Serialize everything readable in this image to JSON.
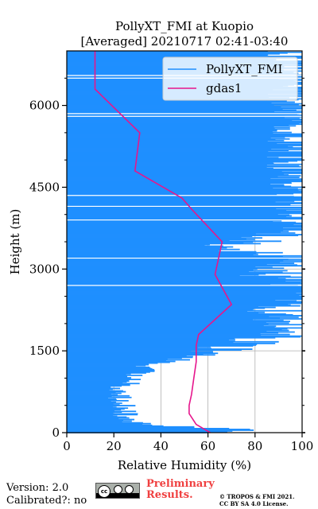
{
  "chart_data": {
    "type": "line",
    "title_line1": "PollyXT_FMI at Kuopio",
    "title_line2": "[Averaged] 20210717 02:41-03:40",
    "xlabel": "Relative Humidity (%)",
    "ylabel": "Height (m)",
    "xlim": [
      0,
      100
    ],
    "ylim": [
      0,
      7000
    ],
    "xticks": [
      0,
      20,
      40,
      60,
      80,
      100
    ],
    "yticks": [
      0,
      1500,
      3000,
      4500,
      6000
    ],
    "grid": true,
    "legend_position": "top-right",
    "series": [
      {
        "name": "PollyXT_FMI",
        "color": "#1f8fff",
        "points": [
          [
            60,
            0
          ],
          [
            85,
            50
          ],
          [
            40,
            120
          ],
          [
            33,
            160
          ],
          [
            28,
            200
          ],
          [
            26,
            260
          ],
          [
            25,
            320
          ],
          [
            24,
            380
          ],
          [
            24,
            450
          ],
          [
            23,
            520
          ],
          [
            23,
            600
          ],
          [
            22,
            680
          ],
          [
            22,
            760
          ],
          [
            24,
            840
          ],
          [
            26,
            920
          ],
          [
            28,
            1000
          ],
          [
            30,
            1080
          ],
          [
            33,
            1160
          ],
          [
            36,
            1240
          ],
          [
            45,
            1320
          ],
          [
            55,
            1400
          ],
          [
            62,
            1480
          ],
          [
            70,
            1560
          ],
          [
            78,
            1640
          ],
          [
            85,
            1720
          ],
          [
            95,
            1800
          ],
          [
            100,
            1900
          ],
          [
            98,
            2000
          ],
          [
            92,
            2100
          ],
          [
            88,
            2200
          ],
          [
            95,
            2300
          ],
          [
            100,
            2400
          ],
          [
            100,
            2500
          ],
          [
            100,
            2600
          ],
          [
            100,
            2700
          ],
          [
            95,
            2800
          ],
          [
            85,
            2900
          ],
          [
            90,
            3000
          ],
          [
            100,
            3100
          ],
          [
            100,
            3200
          ],
          [
            80,
            3300
          ],
          [
            70,
            3400
          ],
          [
            78,
            3500
          ],
          [
            90,
            3600
          ],
          [
            100,
            3700
          ],
          [
            100,
            3800
          ],
          [
            100,
            3900
          ],
          [
            100,
            4000
          ],
          [
            100,
            4200
          ],
          [
            100,
            4400
          ],
          [
            100,
            4600
          ],
          [
            100,
            4800
          ],
          [
            100,
            5000
          ],
          [
            100,
            5200
          ],
          [
            100,
            5400
          ],
          [
            100,
            5600
          ],
          [
            100,
            5800
          ],
          [
            100,
            6000
          ],
          [
            100,
            6200
          ],
          [
            100,
            6400
          ],
          [
            100,
            6600
          ],
          [
            100,
            6800
          ],
          [
            100,
            7000
          ]
        ]
      },
      {
        "name": "gdas1",
        "color": "#e6168c",
        "points": [
          [
            61,
            0
          ],
          [
            55,
            150
          ],
          [
            52,
            350
          ],
          [
            52,
            500
          ],
          [
            53,
            700
          ],
          [
            54,
            1000
          ],
          [
            55,
            1300
          ],
          [
            55,
            1600
          ],
          [
            56,
            1800
          ],
          [
            70,
            2350
          ],
          [
            63,
            2900
          ],
          [
            66,
            3500
          ],
          [
            53,
            4100
          ],
          [
            49,
            4300
          ],
          [
            29,
            4800
          ],
          [
            31,
            5500
          ],
          [
            12,
            6300
          ],
          [
            12,
            7000
          ]
        ]
      }
    ]
  },
  "footer": {
    "version_text": "Version: 2.0",
    "calibrated_text": "Calibrated?: no",
    "preliminary_line1": "Preliminary",
    "preliminary_line2": "Results.",
    "copyright_line1": "© TROPOS & FMI 2021.",
    "copyright_line2": "CC BY SA 4.0 License."
  }
}
